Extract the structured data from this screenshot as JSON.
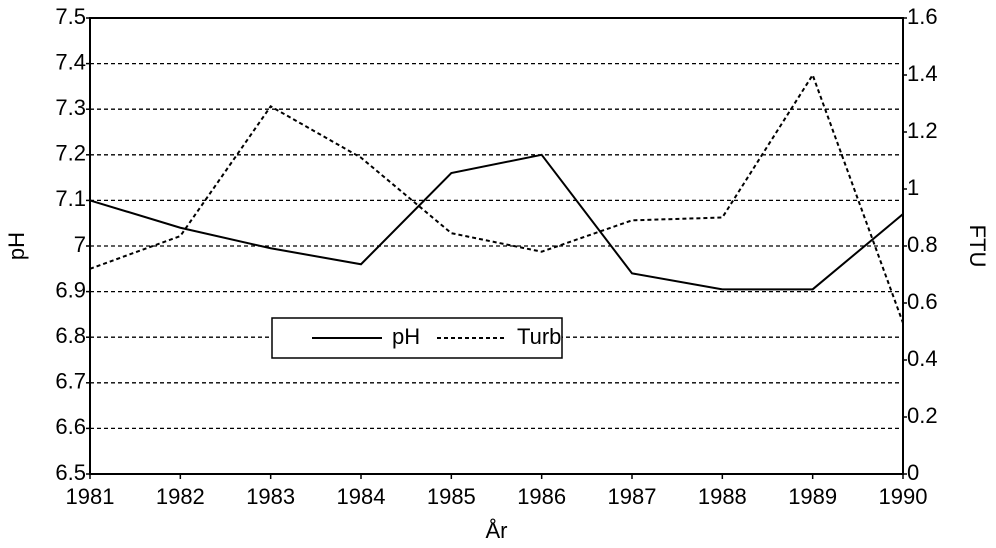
{
  "chart_data": {
    "type": "line",
    "x": [
      1981,
      1982,
      1983,
      1984,
      1985,
      1986,
      1987,
      1988,
      1989,
      1990
    ],
    "xlim": [
      1981,
      1990
    ],
    "xticks": [
      1981,
      1982,
      1983,
      1984,
      1985,
      1986,
      1987,
      1988,
      1989,
      1990
    ],
    "xlabel": "År",
    "ylabel": "pH",
    "y2label": "FTU",
    "ylim": [
      6.5,
      7.5
    ],
    "yticks": [
      6.5,
      6.6,
      6.7,
      6.8,
      6.9,
      7,
      7.1,
      7.2,
      7.3,
      7.4,
      7.5
    ],
    "y2lim": [
      0,
      1.6
    ],
    "y2ticks": [
      0,
      0.2,
      0.4,
      0.6,
      0.8,
      1,
      1.2,
      1.4,
      1.6
    ],
    "grid": true,
    "legend": "center",
    "series": [
      {
        "name": "pH",
        "color": "#000000",
        "line_style": "solid",
        "values": [
          7.1,
          7.04,
          6.995,
          6.96,
          7.16,
          7.2,
          6.94,
          6.905,
          6.905,
          7.07
        ]
      },
      {
        "name": "Turb",
        "color": "#000000",
        "line_style": "dashed",
        "axis": "y2",
        "values": [
          0.72,
          0.835,
          1.29,
          1.11,
          0.845,
          0.78,
          0.89,
          0.9,
          1.4,
          0.53
        ]
      }
    ]
  }
}
